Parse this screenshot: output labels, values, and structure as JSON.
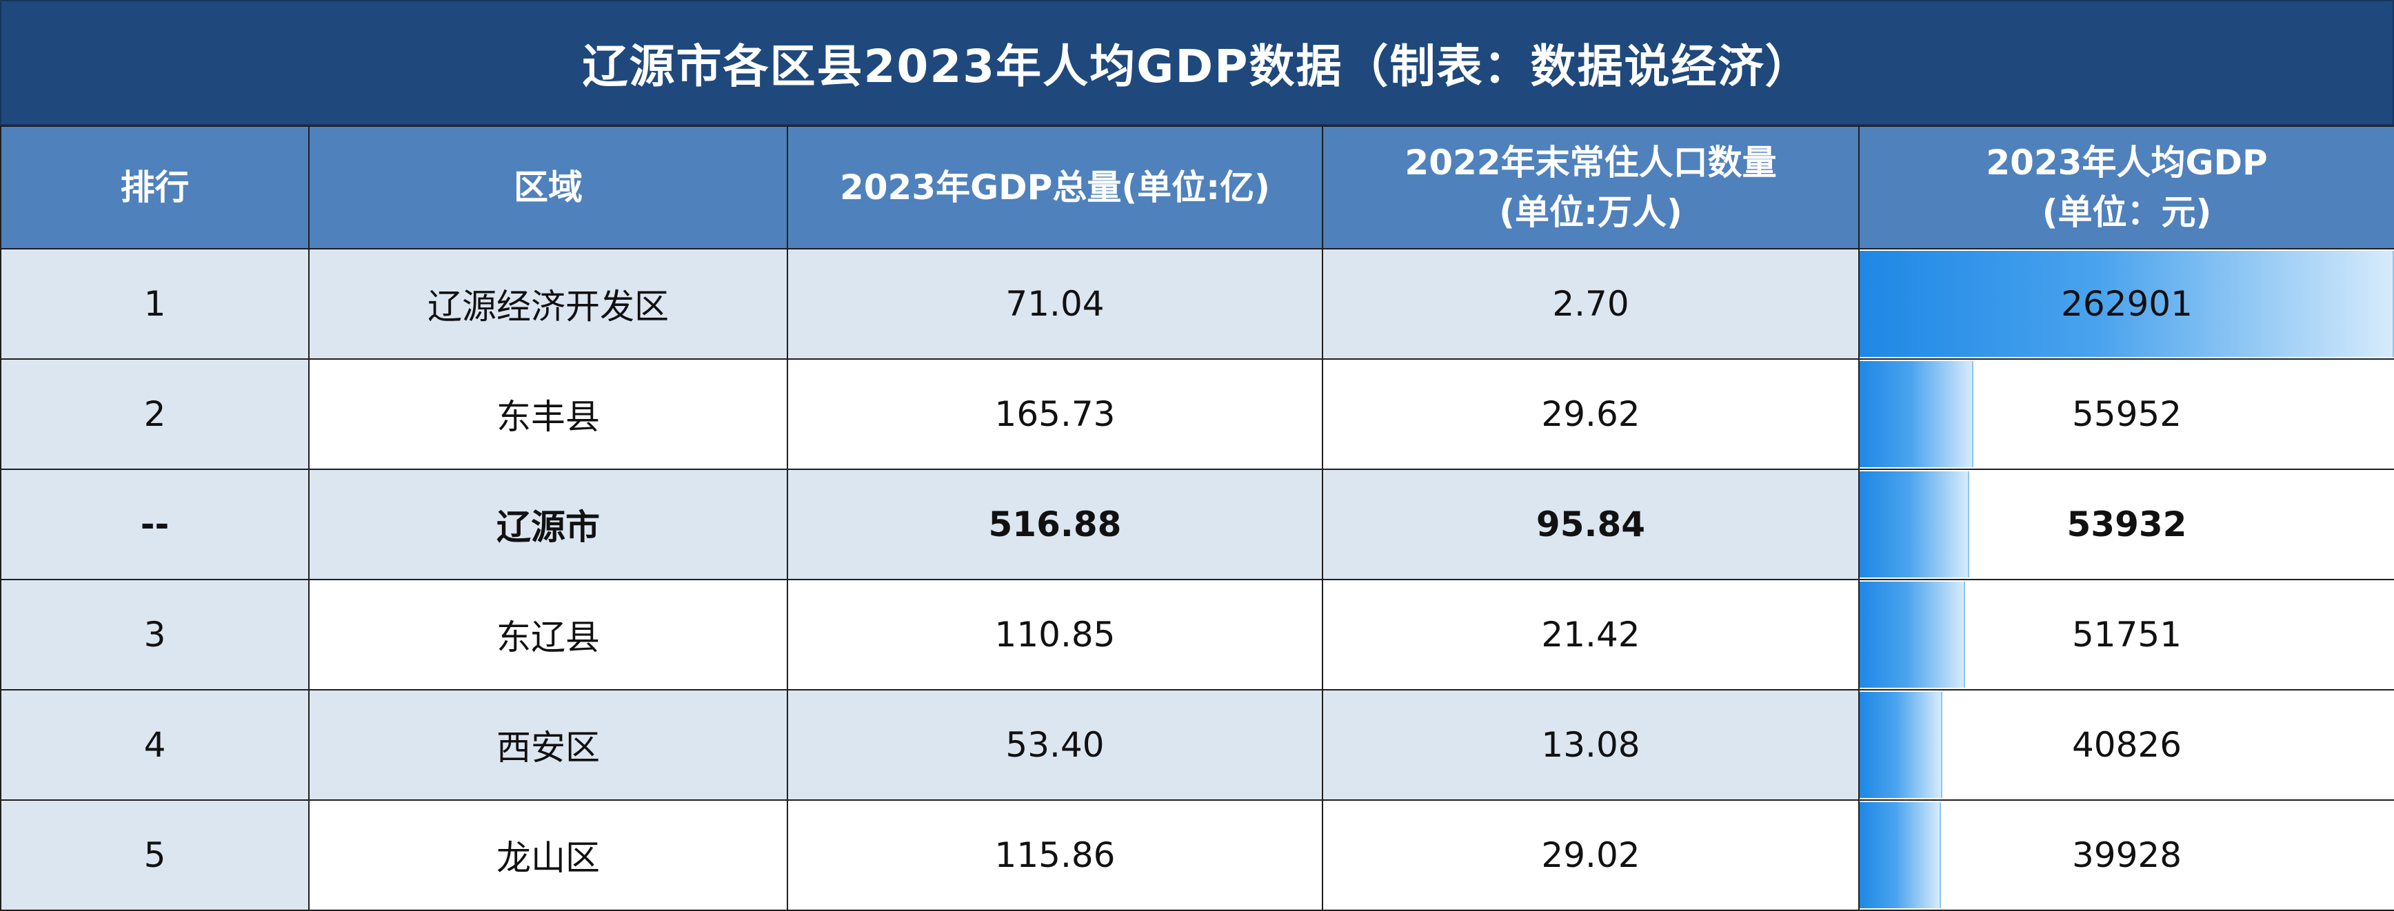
{
  "title": "辽源市各区县2023年人均GDP数据（制表：数据说经济）",
  "headers": {
    "rank": "排行",
    "region": "区域",
    "gdp": "2023年GDP总量(单位:亿)",
    "pop_line1": "2022年末常住人口数量",
    "pop_line2": "(单位:万人)",
    "pcgdp_line1": "2023年人均GDP",
    "pcgdp_line2": "(单位：元)"
  },
  "chart_data": {
    "type": "table",
    "title": "辽源市各区县2023年人均GDP数据（制表：数据说经济）",
    "columns": [
      "排行",
      "区域",
      "2023年GDP总量(单位:亿)",
      "2022年末常住人口数量(单位:万人)",
      "2023年人均GDP(单位：元)"
    ],
    "rows": [
      {
        "rank": "1",
        "region": "辽源经济开发区",
        "gdp": "71.04",
        "population": "2.70",
        "per_capita_gdp": "262901",
        "per_capita_value": 262901,
        "bold": false,
        "shaded": true
      },
      {
        "rank": "2",
        "region": "东丰县",
        "gdp": "165.73",
        "population": "29.62",
        "per_capita_gdp": "55952",
        "per_capita_value": 55952,
        "bold": false,
        "shaded": false
      },
      {
        "rank": "--",
        "region": "辽源市",
        "gdp": "516.88",
        "population": "95.84",
        "per_capita_gdp": "53932",
        "per_capita_value": 53932,
        "bold": true,
        "shaded": true
      },
      {
        "rank": "3",
        "region": "东辽县",
        "gdp": "110.85",
        "population": "21.42",
        "per_capita_gdp": "51751",
        "per_capita_value": 51751,
        "bold": false,
        "shaded": false
      },
      {
        "rank": "4",
        "region": "西安区",
        "gdp": "53.40",
        "population": "13.08",
        "per_capita_gdp": "40826",
        "per_capita_value": 40826,
        "bold": false,
        "shaded": true
      },
      {
        "rank": "5",
        "region": "龙山区",
        "gdp": "115.86",
        "population": "29.02",
        "per_capita_gdp": "39928",
        "per_capita_value": 39928,
        "bold": false,
        "shaded": false
      }
    ],
    "bar_max": 262901
  },
  "colors": {
    "title_bg": "#1f497d",
    "header_bg": "#4f81bd",
    "row_shade": "#dce6f1",
    "bar": "#1e88e5"
  }
}
